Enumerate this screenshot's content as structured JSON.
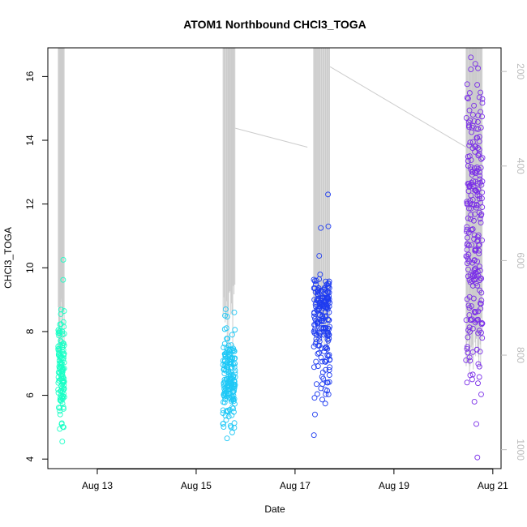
{
  "chart_data": {
    "type": "scatter",
    "title": "ATOM1 Northbound CHCl3_TOGA",
    "xlabel": "Date",
    "ylabel": "CHCl3_TOGA",
    "xlim": [
      "2016-08-12T00:00",
      "2016-08-21T04:00"
    ],
    "ylim": [
      3.7,
      16.9
    ],
    "x_ticks": [
      "Aug 13",
      "Aug 15",
      "Aug 17",
      "Aug 19",
      "Aug 21"
    ],
    "y_ticks": [
      4,
      6,
      8,
      10,
      12,
      14,
      16
    ],
    "secondary_y": {
      "label": "",
      "reversed": true,
      "ticks": [
        200,
        400,
        600,
        800,
        1000
      ],
      "color": "#bbbbbb",
      "description": "altitude trace drawn as a gray line"
    },
    "grid": false,
    "legend": "none",
    "point_colors": [
      "#1bffc6",
      "#1fc8f6",
      "#1f3cf0",
      "#7a2ee8"
    ],
    "series": [
      {
        "color": "#1bffc6",
        "x_range": [
          "2016-08-12T05:00",
          "2016-08-12T08:00"
        ],
        "points": [
          {
            "x": "2016-08-12T05:10",
            "y": 8.05
          },
          {
            "x": "2016-08-12T05:20",
            "y": 7.3
          },
          {
            "x": "2016-08-12T05:30",
            "y": 6.9
          },
          {
            "x": "2016-08-12T05:40",
            "y": 7.1
          },
          {
            "x": "2016-08-12T05:50",
            "y": 5.6
          },
          {
            "x": "2016-08-12T06:00",
            "y": 5.4
          },
          {
            "x": "2016-08-12T06:10",
            "y": 6.5
          },
          {
            "x": "2016-08-12T06:20",
            "y": 7.2
          },
          {
            "x": "2016-08-12T06:30",
            "y": 6.3
          },
          {
            "x": "2016-08-12T06:40",
            "y": 5.1
          },
          {
            "x": "2016-08-12T06:50",
            "y": 7.0
          },
          {
            "x": "2016-08-12T07:00",
            "y": 4.55
          },
          {
            "x": "2016-08-12T07:05",
            "y": 7.5
          },
          {
            "x": "2016-08-12T07:10",
            "y": 7.9
          },
          {
            "x": "2016-08-12T07:15",
            "y": 5.9
          },
          {
            "x": "2016-08-12T07:20",
            "y": 6.4
          },
          {
            "x": "2016-08-12T07:25",
            "y": 9.62
          },
          {
            "x": "2016-08-12T07:30",
            "y": 10.25
          },
          {
            "x": "2016-08-12T07:35",
            "y": 8.3
          },
          {
            "x": "2016-08-12T07:40",
            "y": 5.0
          }
        ]
      },
      {
        "color": "#1fc8f6",
        "x_range": [
          "2016-08-15T13:00",
          "2016-08-15T19:00"
        ],
        "points": [
          {
            "x": "2016-08-15T13:30",
            "y": 6.8
          },
          {
            "x": "2016-08-15T14:00",
            "y": 8.5
          },
          {
            "x": "2016-08-15T14:20",
            "y": 8.7
          },
          {
            "x": "2016-08-15T14:40",
            "y": 6.2
          },
          {
            "x": "2016-08-15T15:00",
            "y": 4.65
          },
          {
            "x": "2016-08-15T15:30",
            "y": 5.5
          },
          {
            "x": "2016-08-15T16:00",
            "y": 7.4
          },
          {
            "x": "2016-08-15T16:30",
            "y": 6.5
          },
          {
            "x": "2016-08-15T17:00",
            "y": 5.0
          },
          {
            "x": "2016-08-15T17:30",
            "y": 7.9
          },
          {
            "x": "2016-08-15T18:00",
            "y": 6.1
          },
          {
            "x": "2016-08-15T18:30",
            "y": 8.6
          }
        ]
      },
      {
        "color": "#1f3cf0",
        "x_range": [
          "2016-08-17T09:00",
          "2016-08-17T17:00"
        ],
        "points": [
          {
            "x": "2016-08-17T09:10",
            "y": 4.75
          },
          {
            "x": "2016-08-17T09:40",
            "y": 5.4
          },
          {
            "x": "2016-08-17T10:30",
            "y": 7.9
          },
          {
            "x": "2016-08-17T11:30",
            "y": 8.3
          },
          {
            "x": "2016-08-17T12:30",
            "y": 11.25
          },
          {
            "x": "2016-08-17T13:00",
            "y": 9.1
          },
          {
            "x": "2016-08-17T14:00",
            "y": 8.0
          },
          {
            "x": "2016-08-17T15:00",
            "y": 9.2
          },
          {
            "x": "2016-08-17T15:30",
            "y": 6.4
          },
          {
            "x": "2016-08-17T16:00",
            "y": 12.3
          },
          {
            "x": "2016-08-17T16:10",
            "y": 11.3
          },
          {
            "x": "2016-08-17T16:30",
            "y": 9.5
          }
        ]
      },
      {
        "color": "#7a2ee8",
        "x_range": [
          "2016-08-20T11:00",
          "2016-08-20T19:00"
        ],
        "points": [
          {
            "x": "2016-08-20T11:00",
            "y": 7.1
          },
          {
            "x": "2016-08-20T11:30",
            "y": 6.4
          },
          {
            "x": "2016-08-20T12:00",
            "y": 13.2
          },
          {
            "x": "2016-08-20T13:00",
            "y": 12.1
          },
          {
            "x": "2016-08-20T14:00",
            "y": 6.5
          },
          {
            "x": "2016-08-20T15:00",
            "y": 14.6
          },
          {
            "x": "2016-08-20T15:30",
            "y": 16.4
          },
          {
            "x": "2016-08-20T16:00",
            "y": 5.1
          },
          {
            "x": "2016-08-20T16:30",
            "y": 4.05
          },
          {
            "x": "2016-08-20T17:00",
            "y": 13.1
          },
          {
            "x": "2016-08-20T17:30",
            "y": 6.9
          },
          {
            "x": "2016-08-20T18:00",
            "y": 15.5
          },
          {
            "x": "2016-08-20T18:30",
            "y": 12.6
          },
          {
            "x": "2016-08-20T18:50",
            "y": 7.8
          }
        ]
      }
    ],
    "altitude_trace": {
      "color": "#cccccc",
      "connectors": [
        {
          "from": [
            "2016-08-15T19:00",
            320
          ],
          "to": [
            "2016-08-17T06:00",
            360
          ]
        },
        {
          "from": [
            "2016-08-17T17:00",
            190
          ],
          "to": [
            "2016-08-20T11:00",
            360
          ]
        }
      ]
    }
  }
}
